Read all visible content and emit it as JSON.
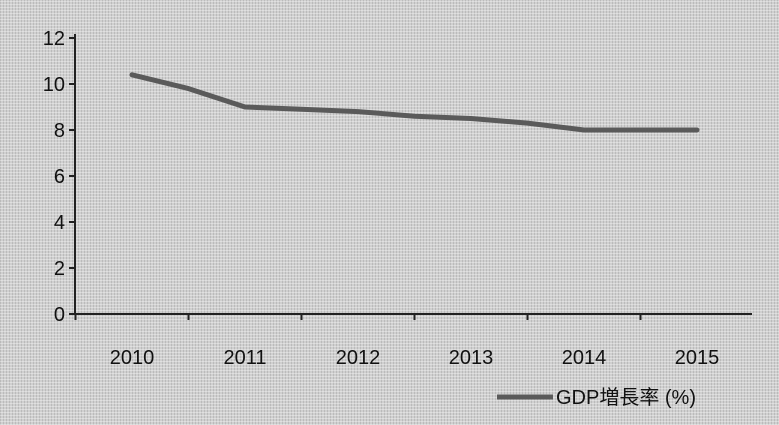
{
  "chart_data": {
    "type": "line",
    "categories": [
      "2010",
      "2011",
      "2012",
      "2013",
      "2014",
      "2015"
    ],
    "x": [
      2010,
      2011,
      2012,
      2013,
      2014,
      2015
    ],
    "series": [
      {
        "name": "GDP増長率 (%)",
        "x": [
          2010,
          2010.5,
          2011,
          2011.5,
          2012,
          2012.5,
          2013,
          2013.5,
          2014,
          2014.5,
          2015
        ],
        "values": [
          10.4,
          9.8,
          9.0,
          8.9,
          8.8,
          8.6,
          8.5,
          8.3,
          8.0,
          8.0,
          8.0
        ],
        "color": "#5a5a5a"
      }
    ],
    "title": "",
    "xlabel": "",
    "ylabel": "",
    "ylim": [
      0,
      12
    ],
    "yticks": [
      "0",
      "2",
      "4",
      "6",
      "8",
      "10",
      "12"
    ],
    "grid": false,
    "legend_position": "bottom-right"
  }
}
